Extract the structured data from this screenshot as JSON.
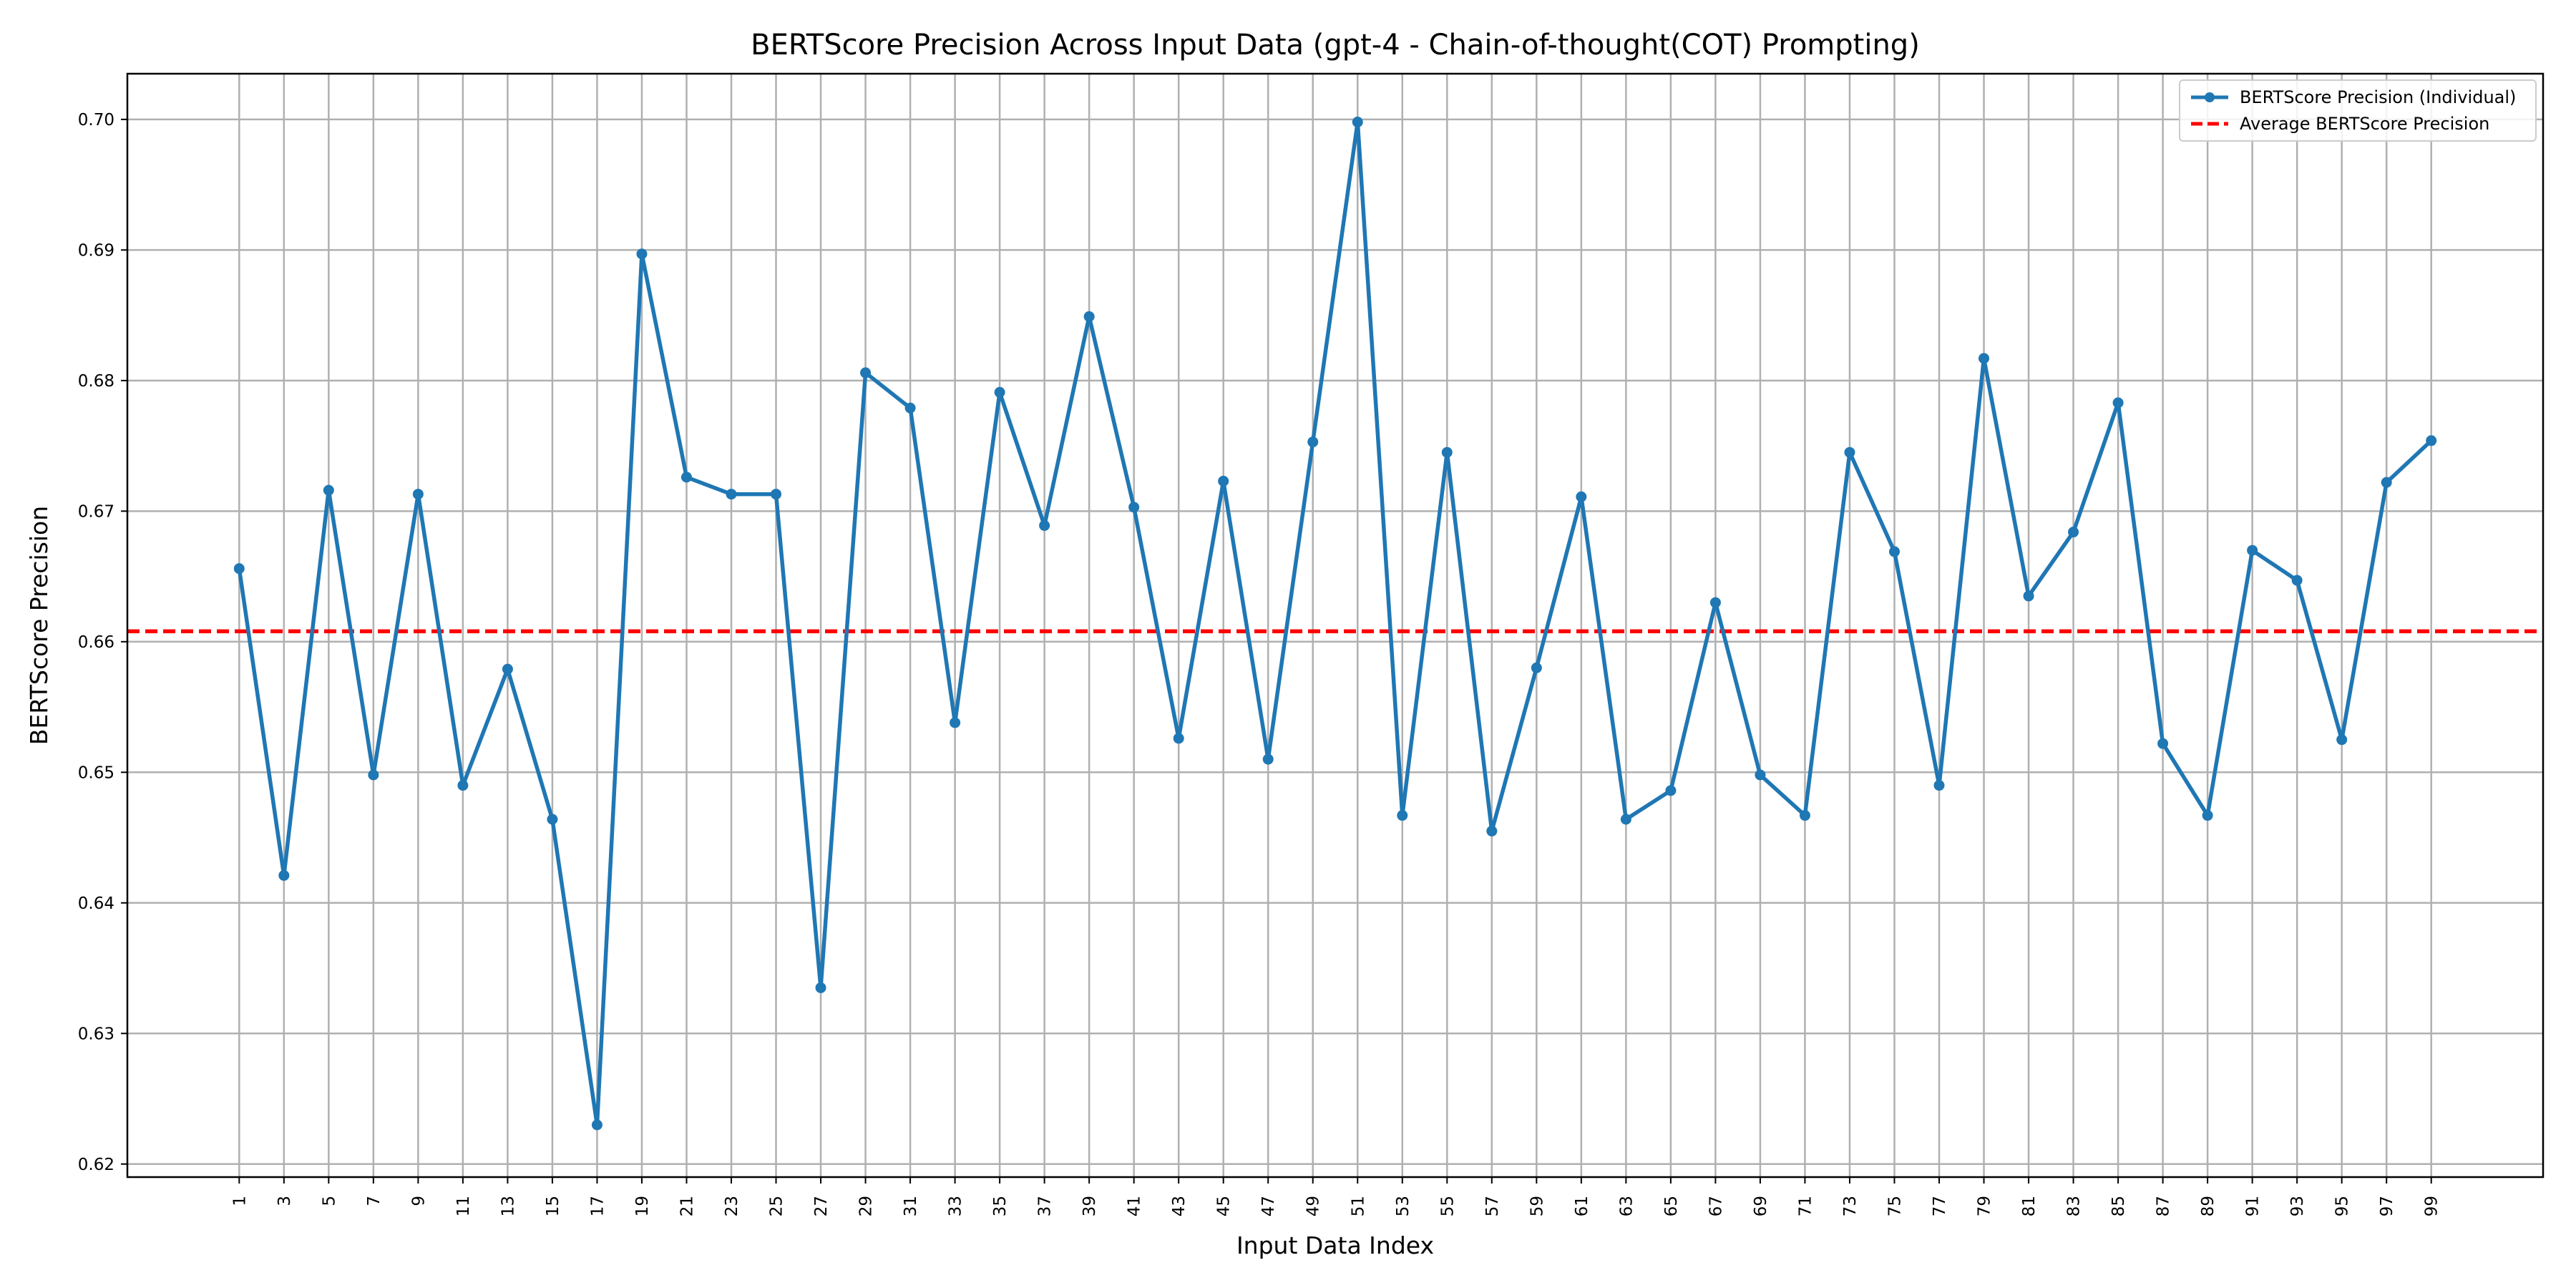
{
  "chart_data": {
    "type": "line",
    "title": "BERTScore Precision Across Input Data (gpt-4 - Chain-of-thought(COT) Prompting)",
    "xlabel": "Input Data Index",
    "ylabel": "BERTScore Precision",
    "x": [
      1,
      3,
      5,
      7,
      9,
      11,
      13,
      15,
      17,
      19,
      21,
      23,
      25,
      27,
      29,
      31,
      33,
      35,
      37,
      39,
      41,
      43,
      45,
      47,
      49,
      51,
      53,
      55,
      57,
      59,
      61,
      63,
      65,
      67,
      69,
      71,
      73,
      75,
      77,
      79,
      81,
      83,
      85,
      87,
      89,
      91,
      93,
      95,
      97,
      99
    ],
    "xlim": [
      -4,
      104
    ],
    "ylim": [
      0.619,
      0.7035
    ],
    "yticks": [
      0.62,
      0.63,
      0.64,
      0.65,
      0.66,
      0.67,
      0.68,
      0.69,
      0.7
    ],
    "ytick_labels": [
      "0.62",
      "0.63",
      "0.64",
      "0.65",
      "0.66",
      "0.67",
      "0.68",
      "0.69",
      "0.70"
    ],
    "grid": true,
    "legend_position": "top-right",
    "series": [
      {
        "name": "BERTScore Precision (Individual)",
        "style": "line-marker",
        "color": "#1f77b4",
        "values": [
          0.6656,
          0.6421,
          0.6716,
          0.6498,
          0.6713,
          0.649,
          0.6579,
          0.6464,
          0.623,
          0.6897,
          0.6726,
          0.6713,
          0.6713,
          0.6335,
          0.6806,
          0.6779,
          0.6538,
          0.6791,
          0.6689,
          0.6849,
          0.6703,
          0.6526,
          0.6723,
          0.651,
          0.6753,
          0.6998,
          0.6467,
          0.6745,
          0.6455,
          0.658,
          0.6711,
          0.6464,
          0.6486,
          0.663,
          0.6498,
          0.6467,
          0.6745,
          0.6669,
          0.649,
          0.6817,
          0.6635,
          0.6684,
          0.6783,
          0.6522,
          0.6467,
          0.667,
          0.6647,
          0.6525,
          0.6722,
          0.6754
        ]
      },
      {
        "name": "Average BERTScore Precision",
        "style": "dashed",
        "color": "#ff0000",
        "value": 0.6608
      }
    ]
  }
}
